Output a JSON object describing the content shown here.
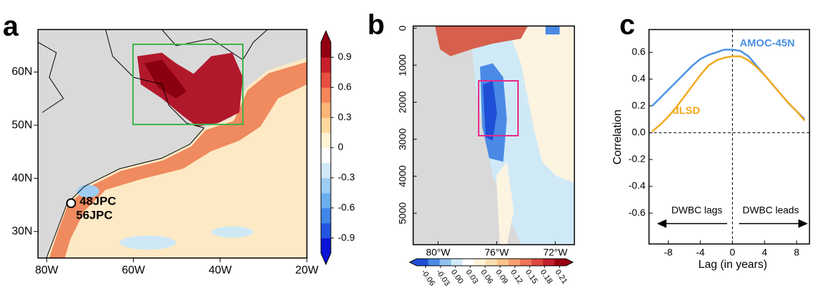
{
  "chart_data": [
    {
      "type": "map",
      "panel": "a",
      "xlim": [
        -82,
        -20
      ],
      "ylim": [
        25,
        68
      ],
      "xticks": [
        {
          "value": -80,
          "label": "80W"
        },
        {
          "value": -60,
          "label": "60W"
        },
        {
          "value": -40,
          "label": "40W"
        },
        {
          "value": -20,
          "label": "20W"
        }
      ],
      "yticks": [
        {
          "value": 30,
          "label": "30N"
        },
        {
          "value": 40,
          "label": "40N"
        },
        {
          "value": 50,
          "label": "50N"
        },
        {
          "value": 60,
          "label": "60N"
        }
      ],
      "annotations": [
        "48JPC",
        "56JPC"
      ],
      "colorbar": {
        "lim": [
          -1.05,
          1.05
        ],
        "ticks": [
          0.9,
          0.6,
          0.3,
          0,
          -0.3,
          -0.6,
          -0.9
        ],
        "colormap": [
          "#0a14d6",
          "#2255e0",
          "#3f86e8",
          "#6aaef0",
          "#9dcdf3",
          "#cfe8f6",
          "#ffffff",
          "#fff3d6",
          "#fdd9a0",
          "#fbb676",
          "#f5875a",
          "#e65040",
          "#c81e2a",
          "#900010"
        ]
      }
    },
    {
      "type": "section",
      "panel": "b",
      "xlim": [
        -81.7,
        -70.7
      ],
      "ylim": [
        5850,
        -60
      ],
      "xticks": [
        {
          "value": -80,
          "label": "80°W"
        },
        {
          "value": -76,
          "label": "76°W"
        },
        {
          "value": -72,
          "label": "72°W"
        }
      ],
      "yticks": [
        0,
        1000,
        2000,
        3000,
        4000,
        5000
      ],
      "colorbar": {
        "lim": [
          -0.078,
          0.223
        ],
        "ticks": [
          -0.06,
          -0.03,
          {
            "value": 0,
            "label": "0.00"
          },
          0.03,
          0.06,
          0.09,
          0.12,
          0.15,
          0.18,
          0.21
        ],
        "colormap": [
          "#1f4fd6",
          "#4a8ae6",
          "#8fc2f0",
          "#cfeaf6",
          "#ffffff",
          "#fff3d8",
          "#fde0b0",
          "#fbc48a",
          "#f7a070",
          "#ee7558",
          "#dc4a3e",
          "#c0202a",
          "#980010"
        ]
      }
    },
    {
      "type": "line",
      "panel": "c",
      "x": [
        -10,
        -9,
        -8,
        -7,
        -6,
        -5,
        -4,
        -3,
        -2,
        -1,
        0,
        1,
        2,
        3,
        4,
        5,
        6,
        7,
        8,
        9
      ],
      "series": [
        {
          "name": "AMOC-45N",
          "color": "#4a90e2",
          "values": [
            0.2,
            0.26,
            0.32,
            0.38,
            0.44,
            0.5,
            0.55,
            0.58,
            0.6,
            0.62,
            0.62,
            0.61,
            0.57,
            0.5,
            0.43,
            0.36,
            0.29,
            0.22,
            0.16,
            0.1
          ]
        },
        {
          "name": "dLSD",
          "color": "#f2a81d",
          "values": [
            0.01,
            0.06,
            0.12,
            0.19,
            0.27,
            0.35,
            0.43,
            0.5,
            0.54,
            0.56,
            0.57,
            0.57,
            0.54,
            0.49,
            0.43,
            0.36,
            0.29,
            0.22,
            0.16,
            0.09
          ]
        }
      ],
      "xlim": [
        -10.4,
        9.6
      ],
      "ylim": [
        -0.83,
        0.77
      ],
      "xticks": [
        -8,
        -4,
        0,
        4,
        8
      ],
      "yticks": [
        0.6,
        0.4,
        0.2,
        {
          "value": 0,
          "label": "0.0"
        },
        -0.2,
        -0.4,
        -0.6
      ],
      "xlabel": "Lag (in years)",
      "ylabel": "Correlation",
      "annotations": [
        "DWBC lags",
        "DWBC leads"
      ]
    }
  ]
}
